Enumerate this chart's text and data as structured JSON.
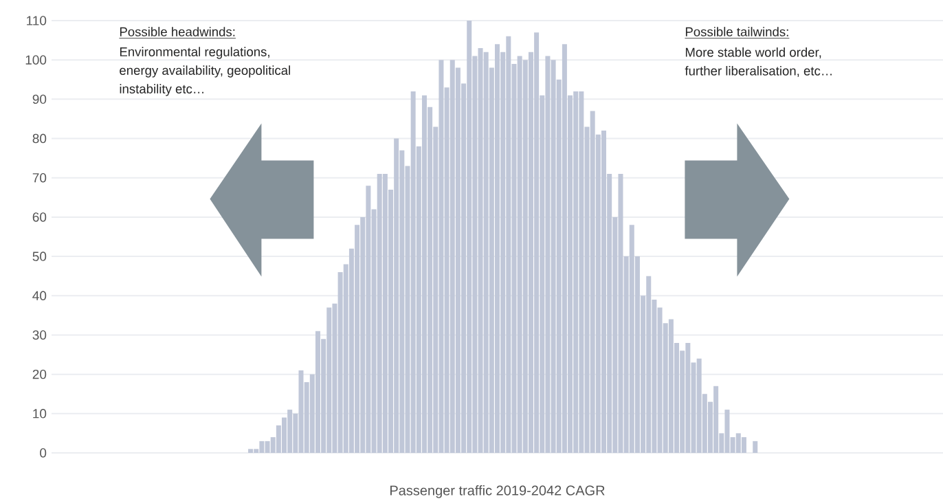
{
  "chart_data": {
    "type": "bar",
    "xlabel": "Passenger traffic 2019-2042 CAGR",
    "categories": [
      null,
      null,
      null,
      null,
      null,
      null,
      null,
      null,
      null,
      null,
      null,
      null,
      null,
      null,
      null,
      null,
      null,
      null,
      null,
      null,
      null,
      null,
      null,
      null,
      null,
      null,
      null,
      null,
      null,
      null,
      null,
      null,
      null,
      null,
      null,
      null,
      null,
      null,
      null,
      null,
      null,
      null,
      null,
      null,
      null,
      null,
      null,
      null,
      null,
      null,
      null,
      null,
      null,
      null,
      null,
      null,
      null,
      null,
      null,
      null,
      null,
      null,
      null,
      null,
      null,
      null,
      null,
      null,
      null,
      null,
      null,
      null,
      null,
      null,
      null,
      null,
      null,
      null,
      null,
      null,
      null,
      null,
      null,
      null,
      null,
      null,
      null,
      null,
      null,
      null,
      null,
      null,
      null,
      null,
      null,
      null,
      null,
      null,
      null,
      null,
      null,
      null,
      null,
      null,
      null,
      null,
      null,
      null,
      null,
      null,
      null,
      null,
      null,
      null,
      null,
      null,
      null,
      null,
      null,
      null,
      null,
      null,
      null,
      null,
      null,
      null,
      null,
      null,
      null,
      null,
      null,
      null,
      null,
      null,
      null,
      null,
      null,
      null,
      null,
      null,
      null,
      null,
      null,
      null,
      null,
      null,
      null,
      null,
      null,
      null,
      null,
      null,
      null,
      null,
      null,
      null,
      null,
      null,
      null
    ],
    "values": [
      null,
      null,
      null,
      null,
      null,
      null,
      null,
      null,
      null,
      null,
      null,
      null,
      null,
      null,
      null,
      null,
      null,
      null,
      null,
      null,
      null,
      null,
      null,
      null,
      null,
      null,
      null,
      null,
      null,
      null,
      null,
      null,
      null,
      null,
      null,
      1,
      1,
      3,
      3,
      4,
      7,
      9,
      11,
      10,
      21,
      18,
      20,
      31,
      29,
      37,
      38,
      46,
      48,
      52,
      58,
      60,
      68,
      62,
      71,
      71,
      67,
      80,
      77,
      73,
      92,
      78,
      91,
      88,
      83,
      100,
      93,
      100,
      98,
      94,
      110,
      101,
      103,
      102,
      98,
      104,
      102,
      106,
      99,
      101,
      100,
      102,
      107,
      91,
      101,
      100,
      95,
      104,
      91,
      92,
      92,
      83,
      87,
      81,
      82,
      71,
      60,
      71,
      50,
      58,
      50,
      40,
      45,
      39,
      37,
      33,
      34,
      28,
      26,
      28,
      23,
      24,
      15,
      13,
      17,
      5,
      11,
      4,
      5,
      4,
      0,
      3,
      null,
      null,
      null,
      null,
      null,
      null,
      null,
      null,
      null,
      null,
      null,
      null,
      null,
      null,
      null,
      null,
      null,
      null,
      null,
      null,
      null,
      null,
      null,
      null,
      null,
      null,
      null,
      null,
      null,
      null,
      null,
      null,
      null
    ],
    "color": "#c0c7d8",
    "ylim": [
      0,
      110
    ],
    "yticks": [
      0,
      10,
      20,
      30,
      40,
      50,
      60,
      70,
      80,
      90,
      100,
      110
    ],
    "grid": "y",
    "annotations": [
      "Possible headwinds:",
      "Environmental regulations,",
      "energy availability, geopolitical",
      "instability etc…",
      "Possible tailwinds:",
      "More stable world order,",
      "further liberalisation, etc…"
    ]
  }
}
